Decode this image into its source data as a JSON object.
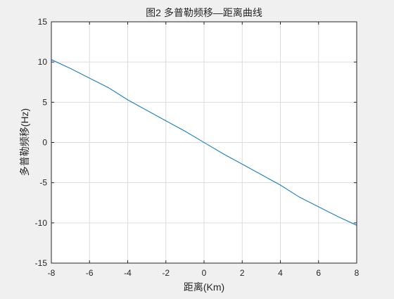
{
  "chart_data": {
    "type": "line",
    "title": "图2  多普勒频移—距离曲线",
    "xlabel": "距离(Km)",
    "ylabel": "多普勒频移(Hz)",
    "xlim": [
      -8,
      8
    ],
    "ylim": [
      -15,
      15
    ],
    "xticks": [
      "-8",
      "-6",
      "-4",
      "-2",
      "0",
      "2",
      "4",
      "6",
      "8"
    ],
    "yticks": [
      "15",
      "10",
      "5",
      "0",
      "-5",
      "-10",
      "-15"
    ],
    "grid": true,
    "series": [
      {
        "color": "#0072bd",
        "x": [
          -8,
          -7,
          -6,
          -5,
          -4,
          -3,
          -2,
          -1,
          0,
          1,
          2,
          3,
          4,
          5,
          6,
          7,
          8
        ],
        "y": [
          10.3,
          9.2,
          8.0,
          6.8,
          5.3,
          4.0,
          2.7,
          1.4,
          0,
          -1.4,
          -2.7,
          -4.0,
          -5.3,
          -6.8,
          -8.0,
          -9.2,
          -10.3
        ]
      }
    ]
  }
}
